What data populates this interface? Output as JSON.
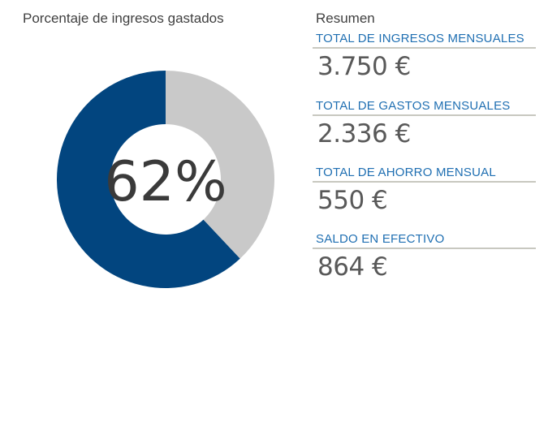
{
  "chart": {
    "title": "Porcentaje de ingresos gastados",
    "center_label": "62%"
  },
  "chart_data": {
    "type": "pie",
    "style": "donut",
    "title": "Porcentaje de ingresos gastados",
    "center_label": "62%",
    "slices": [
      {
        "label": "",
        "value": 62,
        "color": "#02457f"
      },
      {
        "label": "",
        "value": 38,
        "color": "#c9c9c9"
      }
    ]
  },
  "summary": {
    "title": "Resumen",
    "items": [
      {
        "label": "TOTAL DE INGRESOS MENSUALES",
        "value": "3.750 €"
      },
      {
        "label": "TOTAL DE GASTOS MENSUALES",
        "value": "2.336 €"
      },
      {
        "label": "TOTAL DE AHORRO MENSUAL",
        "value": "550 €"
      },
      {
        "label": "SALDO EN EFECTIVO",
        "value": "864 €"
      }
    ]
  }
}
